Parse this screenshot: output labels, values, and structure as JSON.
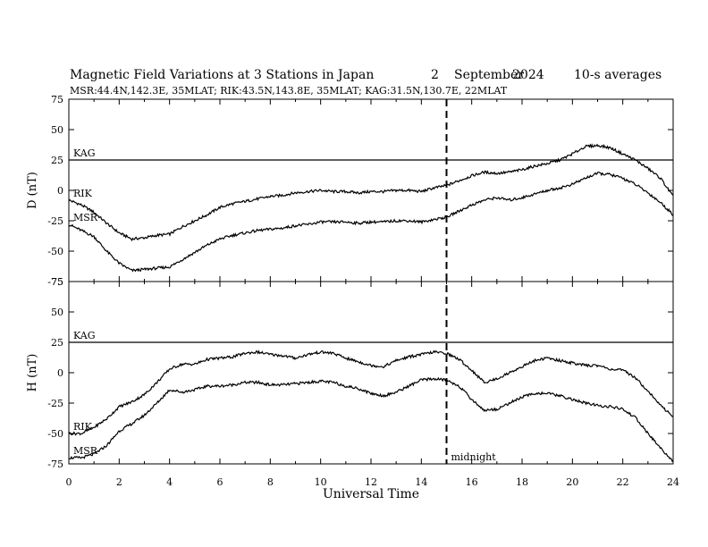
{
  "header": {
    "title": "Magnetic Field Variations at 3 Stations in Japan",
    "day": "2",
    "month": "September",
    "year": "2024",
    "averaging": "10-s averages",
    "stations_line": "MSR:44.4N,142.3E, 35MLAT;  RIK:43.5N,143.8E, 35MLAT;  KAG:31.5N,130.7E, 22MLAT"
  },
  "chart_data": [
    {
      "type": "line",
      "panel": "D",
      "ylabel": "D (nT)",
      "ylim": [
        -75,
        75
      ],
      "yticks": [
        "75",
        "50",
        "25",
        "0",
        "-25",
        "-50",
        "-75"
      ],
      "xlim": [
        0,
        24
      ],
      "grid": false,
      "series": [
        {
          "name": "KAG",
          "x": [
            0,
            24
          ],
          "values": [
            25,
            25
          ]
        },
        {
          "name": "RIK",
          "x": [
            0,
            0.5,
            1,
            1.5,
            2,
            2.5,
            3,
            3.5,
            4,
            4.5,
            5,
            5.5,
            6,
            6.5,
            7,
            7.5,
            8,
            8.5,
            9,
            9.5,
            10,
            10.5,
            11,
            11.5,
            12,
            12.5,
            13,
            13.5,
            14,
            14.5,
            15,
            15.5,
            16,
            16.5,
            17,
            17.5,
            18,
            18.5,
            19,
            19.5,
            20,
            20.5,
            21,
            21.5,
            22,
            22.5,
            23,
            23.5,
            24
          ],
          "values": [
            -8,
            -12,
            -18,
            -27,
            -35,
            -40,
            -39,
            -37,
            -36,
            -30,
            -25,
            -20,
            -14,
            -11,
            -9,
            -7,
            -5,
            -4,
            -2,
            -1,
            0,
            -1,
            -1,
            -2,
            -1,
            -1,
            0,
            0,
            -1,
            2,
            4,
            8,
            12,
            15,
            14,
            15,
            17,
            20,
            22,
            25,
            30,
            36,
            37,
            35,
            30,
            25,
            18,
            10,
            -5
          ]
        },
        {
          "name": "MSR",
          "x": [
            0,
            0.5,
            1,
            1.5,
            2,
            2.5,
            3,
            3.5,
            4,
            4.5,
            5,
            5.5,
            6,
            6.5,
            7,
            7.5,
            8,
            8.5,
            9,
            9.5,
            10,
            10.5,
            11,
            11.5,
            12,
            12.5,
            13,
            13.5,
            14,
            14.5,
            15,
            15.5,
            16,
            16.5,
            17,
            17.5,
            18,
            18.5,
            19,
            19.5,
            20,
            20.5,
            21,
            21.5,
            22,
            22.5,
            23,
            23.5,
            24
          ],
          "values": [
            -28,
            -33,
            -38,
            -50,
            -60,
            -66,
            -65,
            -64,
            -63,
            -57,
            -51,
            -45,
            -40,
            -37,
            -35,
            -33,
            -32,
            -31,
            -29,
            -28,
            -26,
            -26,
            -26,
            -27,
            -26,
            -26,
            -25,
            -25,
            -26,
            -24,
            -22,
            -17,
            -12,
            -8,
            -6,
            -8,
            -6,
            -3,
            0,
            2,
            5,
            10,
            14,
            13,
            10,
            5,
            -2,
            -10,
            -20
          ]
        }
      ]
    },
    {
      "type": "line",
      "panel": "H",
      "ylabel": "H (nT)",
      "xlabel": "Universal Time",
      "ylim": [
        -75,
        75
      ],
      "yticks": [
        "75",
        "50",
        "25",
        "0",
        "-25",
        "-50",
        "-75"
      ],
      "xlim": [
        0,
        24
      ],
      "xticks": [
        "0",
        "2",
        "4",
        "6",
        "8",
        "10",
        "12",
        "14",
        "16",
        "18",
        "20",
        "22",
        "24"
      ],
      "grid": false,
      "marker": {
        "x": 15,
        "label": "midnight",
        "style": "dashed"
      },
      "series": [
        {
          "name": "KAG",
          "x": [
            0,
            24
          ],
          "values": [
            25,
            25
          ]
        },
        {
          "name": "RIK",
          "x": [
            0,
            0.5,
            1,
            1.5,
            2,
            2.5,
            3,
            3.5,
            4,
            4.5,
            5,
            5.5,
            6,
            6.5,
            7,
            7.5,
            8,
            8.5,
            9,
            9.5,
            10,
            10.5,
            11,
            11.5,
            12,
            12.5,
            13,
            13.5,
            14,
            14.5,
            15,
            15.5,
            16,
            16.5,
            17,
            17.5,
            18,
            18.5,
            19,
            19.5,
            20,
            20.5,
            21,
            21.5,
            22,
            22.5,
            23,
            23.5,
            24
          ],
          "values": [
            -50,
            -50,
            -45,
            -38,
            -28,
            -24,
            -18,
            -8,
            3,
            7,
            7,
            11,
            12,
            13,
            16,
            17,
            15,
            14,
            12,
            15,
            17,
            16,
            12,
            9,
            6,
            5,
            10,
            13,
            15,
            17,
            16,
            11,
            2,
            -8,
            -5,
            0,
            5,
            10,
            12,
            10,
            8,
            6,
            6,
            3,
            2,
            -4,
            -15,
            -27,
            -36
          ]
        },
        {
          "name": "MSR",
          "x": [
            0,
            0.5,
            1,
            1.5,
            2,
            2.5,
            3,
            3.5,
            4,
            4.5,
            5,
            5.5,
            6,
            6.5,
            7,
            7.5,
            8,
            8.5,
            9,
            9.5,
            10,
            10.5,
            11,
            11.5,
            12,
            12.5,
            13,
            13.5,
            14,
            14.5,
            15,
            15.5,
            16,
            16.5,
            17,
            17.5,
            18,
            18.5,
            19,
            19.5,
            20,
            20.5,
            21,
            21.5,
            22,
            22.5,
            23,
            23.5,
            24
          ],
          "values": [
            -70,
            -70,
            -67,
            -60,
            -48,
            -42,
            -35,
            -25,
            -14,
            -16,
            -14,
            -11,
            -11,
            -10,
            -8,
            -8,
            -10,
            -10,
            -9,
            -8,
            -7,
            -8,
            -11,
            -13,
            -17,
            -19,
            -16,
            -11,
            -6,
            -5,
            -6,
            -11,
            -22,
            -31,
            -30,
            -25,
            -20,
            -17,
            -17,
            -19,
            -22,
            -25,
            -27,
            -28,
            -30,
            -37,
            -50,
            -62,
            -73
          ]
        }
      ]
    }
  ]
}
